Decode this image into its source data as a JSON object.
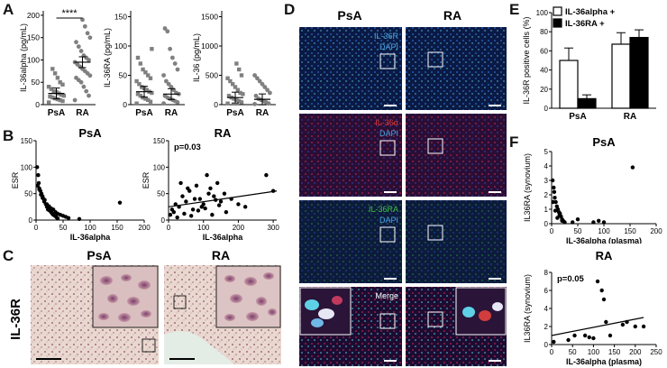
{
  "panel_letters": [
    "A",
    "B",
    "C",
    "D",
    "E",
    "F"
  ],
  "chart_data": [
    {
      "id": "A1",
      "type": "scatter",
      "categories": [
        "PsA",
        "RA"
      ],
      "ylabel": "IL-36alpha (pg/mL)",
      "yticks": [
        "0",
        "50",
        "100",
        "150",
        "200"
      ],
      "ylim": [
        0,
        210
      ],
      "significance": "****",
      "series": [
        {
          "values": [
            5,
            8,
            10,
            12,
            14,
            16,
            18,
            20,
            22,
            25,
            28,
            30,
            35,
            40,
            45,
            50,
            60,
            70,
            80
          ]
        },
        {
          "values": [
            10,
            20,
            30,
            40,
            50,
            55,
            60,
            65,
            70,
            75,
            80,
            85,
            90,
            95,
            100,
            105,
            110,
            120,
            130,
            140,
            150,
            160,
            175,
            190
          ]
        }
      ],
      "means": [
        25,
        95
      ]
    },
    {
      "id": "A2",
      "type": "scatter",
      "categories": [
        "PsA",
        "RA"
      ],
      "ylabel": "IL-36RA (pg/mL)",
      "yticks": [
        "0",
        "50",
        "100",
        "150"
      ],
      "ylim": [
        0,
        160
      ],
      "series": [
        {
          "values": [
            2,
            5,
            8,
            10,
            12,
            15,
            18,
            20,
            22,
            25,
            28,
            30,
            35,
            40,
            45,
            50,
            55,
            60,
            70,
            80,
            95
          ]
        },
        {
          "values": [
            2,
            4,
            6,
            8,
            10,
            12,
            15,
            18,
            20,
            25,
            30,
            35,
            40,
            50,
            60,
            70,
            80,
            95,
            125,
            130
          ]
        }
      ],
      "means": [
        22,
        18
      ]
    },
    {
      "id": "A3",
      "type": "scatter",
      "categories": [
        "PsA",
        "RA"
      ],
      "ylabel": "IL-36 (pg/mL)",
      "yticks": [
        "0",
        "500",
        "1000",
        "1500"
      ],
      "ylim": [
        0,
        1600
      ],
      "series": [
        {
          "values": [
            20,
            40,
            60,
            80,
            100,
            120,
            150,
            180,
            200,
            250,
            300,
            350,
            400,
            450,
            500,
            600,
            700
          ]
        },
        {
          "values": [
            10,
            20,
            40,
            60,
            80,
            100,
            150,
            200,
            250,
            300,
            350,
            400,
            450,
            500
          ]
        }
      ],
      "means": [
        120,
        90
      ]
    },
    {
      "id": "B1",
      "type": "scatter",
      "title": "PsA",
      "xlabel": "IL-36alpha",
      "ylabel": "ESR",
      "xticks": [
        "0",
        "50",
        "100",
        "150",
        "200"
      ],
      "yticks": [
        "0",
        "50",
        "100",
        "150"
      ],
      "xlim": [
        0,
        200
      ],
      "ylim": [
        0,
        150
      ],
      "x": [
        2,
        4,
        5,
        6,
        8,
        10,
        12,
        14,
        15,
        18,
        20,
        22,
        25,
        28,
        30,
        32,
        35,
        38,
        40,
        3,
        6,
        9,
        12,
        16,
        20,
        24,
        28,
        32,
        36,
        40,
        45,
        50,
        55,
        60,
        80,
        155
      ],
      "y": [
        100,
        85,
        70,
        60,
        55,
        50,
        45,
        40,
        35,
        30,
        25,
        20,
        18,
        15,
        12,
        10,
        8,
        5,
        3,
        65,
        58,
        48,
        42,
        38,
        30,
        26,
        22,
        20,
        15,
        12,
        10,
        8,
        6,
        4,
        2,
        33
      ]
    },
    {
      "id": "B2",
      "type": "scatter",
      "title": "RA",
      "xlabel": "IL-36alpha",
      "ylabel": "ESR",
      "annotation": "p=0.03",
      "xticks": [
        "0",
        "100",
        "200",
        "300"
      ],
      "yticks": [
        "0",
        "50",
        "100",
        "150"
      ],
      "xlim": [
        0,
        310
      ],
      "ylim": [
        0,
        150
      ],
      "x": [
        5,
        10,
        15,
        20,
        30,
        40,
        50,
        60,
        70,
        80,
        90,
        100,
        110,
        120,
        130,
        140,
        150,
        160,
        180,
        200,
        220,
        280,
        300,
        25,
        45,
        65,
        85,
        105,
        125,
        145,
        165,
        35,
        55,
        75,
        95,
        115,
        135
      ],
      "y": [
        10,
        20,
        15,
        30,
        25,
        45,
        35,
        55,
        20,
        65,
        40,
        30,
        85,
        60,
        45,
        70,
        35,
        50,
        40,
        30,
        25,
        85,
        55,
        5,
        12,
        8,
        18,
        22,
        10,
        28,
        15,
        70,
        60,
        40,
        25,
        50,
        38
      ],
      "trend": {
        "x": [
          0,
          310
        ],
        "y": [
          25,
          55
        ]
      }
    },
    {
      "id": "E",
      "type": "bar",
      "ylabel": "IL-36R positive cells (%)",
      "categories": [
        "PsA",
        "RA"
      ],
      "yticks": [
        "0",
        "20",
        "40",
        "60",
        "80",
        "100"
      ],
      "ylim": [
        0,
        100
      ],
      "series": [
        {
          "name": "IL-36alpha +",
          "color": "#ffffff",
          "values": [
            50,
            67
          ],
          "errors": [
            13,
            12
          ]
        },
        {
          "name": "IL-36RA +",
          "color": "#000000",
          "values": [
            10,
            74
          ],
          "errors": [
            4,
            8
          ]
        }
      ]
    },
    {
      "id": "F1",
      "type": "scatter",
      "title": "PsA",
      "xlabel": "IL-36alpha (plasma)",
      "ylabel": "IL36RA (synovium)",
      "xticks": [
        "0",
        "50",
        "100",
        "150",
        "200"
      ],
      "yticks": [
        "0",
        "1",
        "2",
        "3",
        "4",
        "5"
      ],
      "xlim": [
        0,
        200
      ],
      "ylim": [
        0,
        5
      ],
      "x": [
        2,
        4,
        5,
        6,
        8,
        10,
        12,
        14,
        15,
        18,
        20,
        22,
        25,
        3,
        7,
        11,
        16,
        20,
        40,
        50,
        80,
        90,
        100,
        155
      ],
      "y": [
        3.0,
        2.5,
        2.2,
        1.8,
        1.5,
        1.2,
        1.0,
        0.8,
        0.6,
        0.5,
        0.3,
        0.2,
        0.1,
        1.5,
        0.9,
        0.4,
        0.7,
        0.2,
        0.1,
        0.3,
        0.1,
        0.2,
        0.1,
        3.9
      ]
    },
    {
      "id": "F2",
      "type": "scatter",
      "title": "RA",
      "xlabel": "IL-36alpha (plasma)",
      "ylabel": "IL36RA (synovium)",
      "annotation": "p=0.05",
      "xticks": [
        "0",
        "50",
        "100",
        "150",
        "200",
        "250"
      ],
      "yticks": [
        "0",
        "2",
        "4",
        "6",
        "8"
      ],
      "xlim": [
        0,
        250
      ],
      "ylim": [
        0,
        8
      ],
      "x": [
        5,
        40,
        55,
        80,
        90,
        100,
        110,
        120,
        125,
        130,
        140,
        170,
        180,
        200,
        220
      ],
      "y": [
        0.3,
        0.5,
        1.0,
        1.0,
        0.8,
        0.7,
        7.0,
        6.0,
        5.0,
        2.5,
        1.0,
        2.2,
        2.5,
        2.0,
        2.0
      ],
      "trend": {
        "x": [
          0,
          220
        ],
        "y": [
          1.0,
          3.0
        ]
      }
    }
  ],
  "panelC": {
    "ylabel": "IL-36R",
    "titles": [
      "PsA",
      "RA"
    ]
  },
  "panelD": {
    "col_titles": [
      "PsA",
      "RA"
    ],
    "rows": [
      {
        "labels": [
          "IL-36R",
          "DAPI"
        ],
        "colors": [
          "#4aa3df",
          "#4aa3df"
        ]
      },
      {
        "labels": [
          "IL-36α",
          "DAPI"
        ],
        "colors": [
          "#e03b3b",
          "#4aa3df"
        ]
      },
      {
        "labels": [
          "IL-36RA",
          "DAPI"
        ],
        "colors": [
          "#3fbf3f",
          "#4aa3df"
        ]
      },
      {
        "labels": [
          "Merge"
        ],
        "colors": [
          "#ffffff"
        ]
      }
    ]
  }
}
